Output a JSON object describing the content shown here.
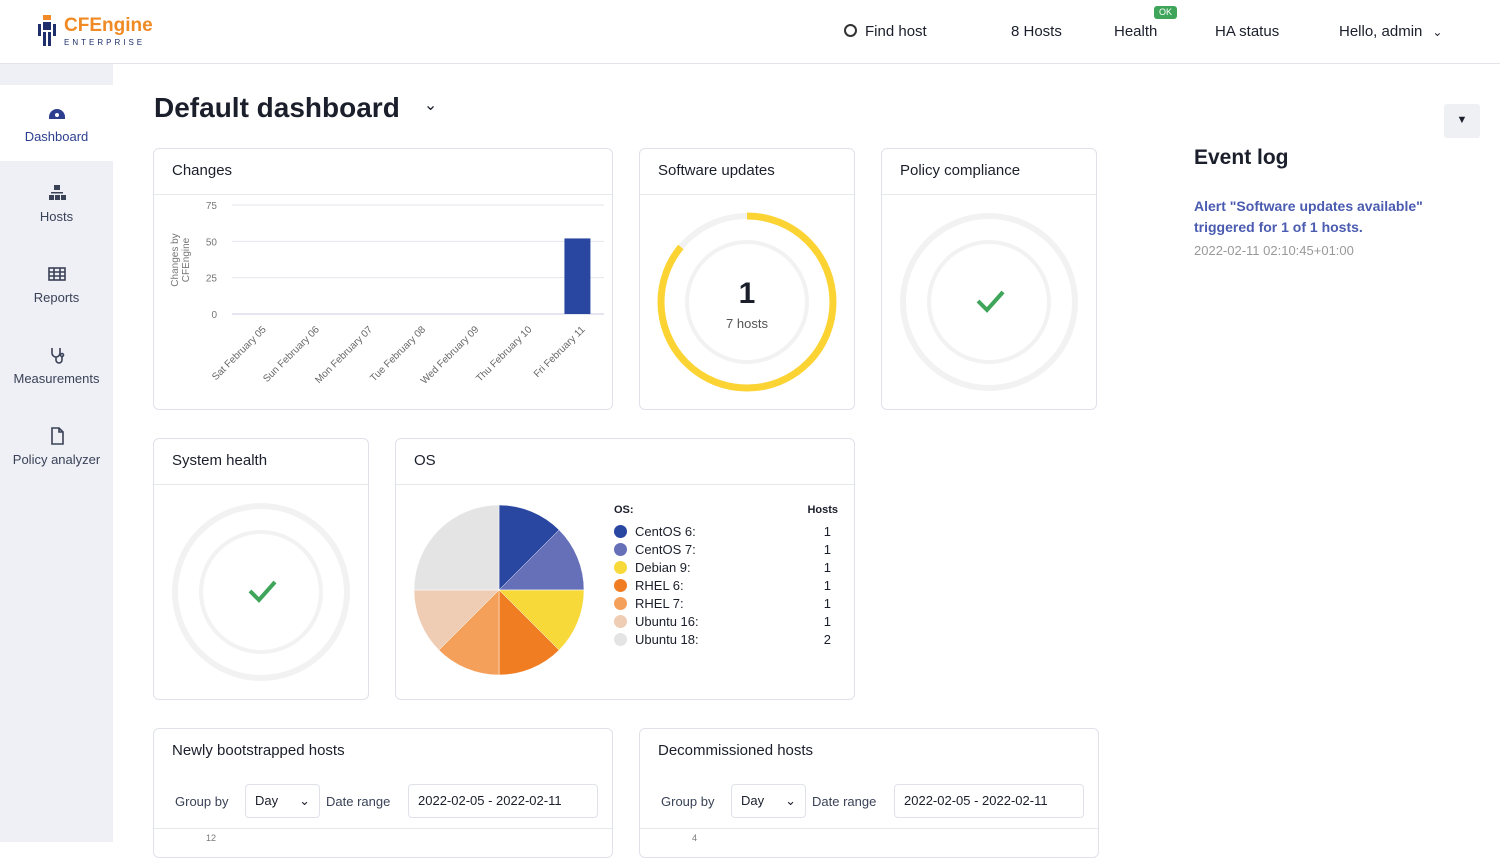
{
  "header": {
    "logo_brand": "CFEngine",
    "logo_sub": "ENTERPRISE",
    "find_host": "Find host",
    "hosts": "8 Hosts",
    "health": "Health",
    "health_badge": "OK",
    "ha_status": "HA status",
    "user": "Hello, admin"
  },
  "sidebar": {
    "items": [
      {
        "label": "Dashboard",
        "icon": "dashboard-icon",
        "active": true
      },
      {
        "label": "Hosts",
        "icon": "hosts-icon"
      },
      {
        "label": "Reports",
        "icon": "table-icon"
      },
      {
        "label": "Measurements",
        "icon": "stethoscope-icon"
      },
      {
        "label": "Policy analyzer",
        "icon": "file-icon"
      }
    ]
  },
  "page": {
    "title": "Default dashboard"
  },
  "cards": {
    "changes": {
      "title": "Changes"
    },
    "software": {
      "title": "Software updates",
      "value": "1",
      "sub": "7 hosts",
      "fraction": 0.86
    },
    "compliance": {
      "title": "Policy compliance"
    },
    "health": {
      "title": "System health"
    },
    "os": {
      "title": "OS",
      "legend_title": "OS:",
      "legend_hosts": "Hosts",
      "items": [
        {
          "label": "CentOS 6:",
          "value": 1,
          "color": "#2946a0"
        },
        {
          "label": "CentOS 7:",
          "value": 1,
          "color": "#6570b8"
        },
        {
          "label": "Debian 9:",
          "value": 1,
          "color": "#f8d93a"
        },
        {
          "label": "RHEL 6:",
          "value": 1,
          "color": "#f07d22"
        },
        {
          "label": "RHEL 7:",
          "value": 1,
          "color": "#f4a05a"
        },
        {
          "label": "Ubuntu 16:",
          "value": 1,
          "color": "#eecdb4"
        },
        {
          "label": "Ubuntu 18:",
          "value": 2,
          "color": "#e4e4e4"
        }
      ]
    },
    "bootstrapped": {
      "title": "Newly bootstrapped hosts",
      "group_by": "Group by",
      "group_value": "Day",
      "date_range": "Date range",
      "range_value": "2022-02-05 - 2022-02-11",
      "first_tick": "12"
    },
    "decommissioned": {
      "title": "Decommissioned hosts",
      "group_by": "Group by",
      "group_value": "Day",
      "date_range": "Date range",
      "range_value": "2022-02-05 - 2022-02-11",
      "first_tick": "4"
    }
  },
  "event_log": {
    "title": "Event log",
    "items": [
      {
        "text": "Alert \"Software updates available\" triggered for 1 of 1 hosts.",
        "time": "2022-02-11 02:10:45+01:00"
      }
    ]
  },
  "chart_data": {
    "type": "bar",
    "title": "",
    "ylabel": "Changes by CFEngine",
    "xlabel": "",
    "ylim": [
      0,
      75
    ],
    "yticks": [
      "0",
      "25",
      "50",
      "75"
    ],
    "categories": [
      "Sat February 05",
      "Sun February 06",
      "Mon February 07",
      "Tue February 08",
      "Wed February 09",
      "Thu February 10",
      "Fri February 11"
    ],
    "values": [
      0,
      0,
      0,
      0,
      0,
      0,
      52
    ],
    "color": "#2946a0",
    "grid": true
  }
}
